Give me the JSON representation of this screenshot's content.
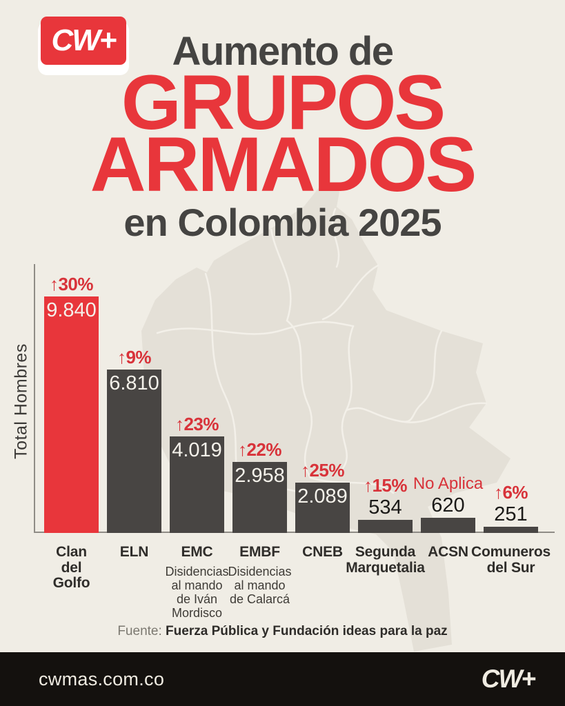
{
  "brand": {
    "logo_text": "CW+",
    "accent": "#E8363B"
  },
  "title": {
    "line1": "Aumento de",
    "line2": "GRUPOS",
    "line3": "ARMADOS",
    "line4": "en Colombia 2025"
  },
  "chart_data": {
    "type": "bar",
    "title": "Aumento de GRUPOS ARMADOS en Colombia 2025",
    "xlabel": "",
    "ylabel": "Total Hombres",
    "ylim": [
      0,
      9840
    ],
    "grid": false,
    "legend": false,
    "categories": [
      "Clan del Golfo",
      "ELN",
      "EMC",
      "EMBF",
      "CNEB",
      "Segunda Marquetalia",
      "ACSN",
      "Comuneros del Sur"
    ],
    "values": [
      9840,
      6810,
      4019,
      2958,
      2089,
      534,
      620,
      251
    ],
    "bars": [
      {
        "category_lines": [
          "Clan",
          "del",
          "Golfo"
        ],
        "value": 9840,
        "value_label": "9.840",
        "change_label": "↑30%",
        "bar_color": "#E8363B",
        "value_placement": "inside"
      },
      {
        "category_lines": [
          "ELN"
        ],
        "value": 6810,
        "value_label": "6.810",
        "change_label": "↑9%",
        "bar_color": "#484543",
        "value_placement": "inside"
      },
      {
        "category_lines": [
          "EMC"
        ],
        "sublabel_lines": [
          "Disidencias",
          "al mando",
          "de Iván",
          "Mordisco"
        ],
        "value": 4019,
        "value_label": "4.019",
        "change_label": "↑23%",
        "bar_color": "#484543",
        "value_placement": "inside"
      },
      {
        "category_lines": [
          "EMBF"
        ],
        "sublabel_lines": [
          "Disidencias",
          "al mando",
          "de Calarcá"
        ],
        "value": 2958,
        "value_label": "2.958",
        "change_label": "↑22%",
        "bar_color": "#484543",
        "value_placement": "inside"
      },
      {
        "category_lines": [
          "CNEB"
        ],
        "value": 2089,
        "value_label": "2.089",
        "change_label": "↑25%",
        "bar_color": "#484543",
        "value_placement": "inside"
      },
      {
        "category_lines": [
          "Segunda",
          "Marquetalia"
        ],
        "value": 534,
        "value_label": "534",
        "change_label": "↑15%",
        "bar_color": "#484543",
        "value_placement": "above"
      },
      {
        "category_lines": [
          "ACSN"
        ],
        "value": 620,
        "value_label": "620",
        "change_label": "No Aplica",
        "change_weight": "regular",
        "bar_color": "#484543",
        "value_placement": "above"
      },
      {
        "category_lines": [
          "Comuneros",
          "del Sur"
        ],
        "value": 251,
        "value_label": "251",
        "change_label": "↑6%",
        "bar_color": "#484543",
        "value_placement": "above"
      }
    ]
  },
  "source": {
    "prefix": "Fuente:",
    "text": "Fuerza Pública y Fundación ideas para la paz"
  },
  "footer": {
    "url": "cwmas.com.co",
    "logo_text": "CW+"
  },
  "colors": {
    "background": "#F0EDE5",
    "map_fill": "#E4E0D7",
    "map_border": "#F3F0E9",
    "accent_red": "#E8363B",
    "bar_dark": "#484543",
    "label_red": "#D8333A",
    "axis_gray": "#8F8C86",
    "footer_bg": "#14110E",
    "footer_text": "#EFEBE1"
  }
}
